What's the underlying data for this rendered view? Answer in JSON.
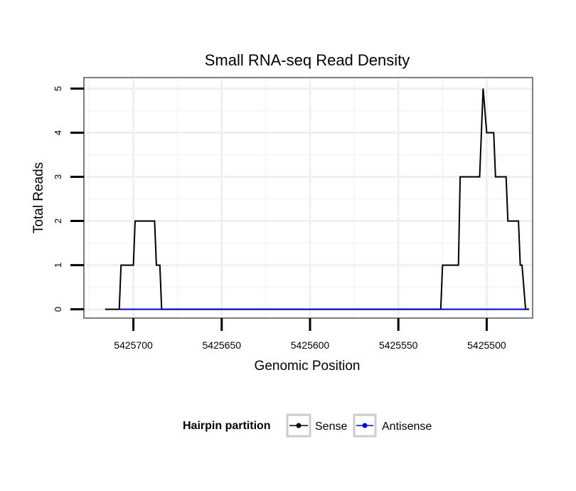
{
  "chart_data": {
    "type": "line",
    "title": "Small RNA-seq Read Density",
    "xlabel": "Genomic Position",
    "ylabel": "Total Reads",
    "x_reversed": true,
    "xlim": [
      5425728,
      5425474
    ],
    "ylim": [
      -0.2,
      5.25
    ],
    "xticks": [
      5425700,
      5425650,
      5425600,
      5425550,
      5425500
    ],
    "xtick_labels": [
      "5425700",
      "5425650",
      "5425600",
      "5425550",
      "5425500"
    ],
    "yticks": [
      0,
      1,
      2,
      3,
      4,
      5
    ],
    "ytick_labels": [
      "0",
      "1",
      "2",
      "3",
      "4",
      "5"
    ],
    "grid": true,
    "legend": {
      "title": "Hairpin partition",
      "position": "bottom",
      "entries": [
        "Sense",
        "Antisense"
      ]
    },
    "series": [
      {
        "name": "Sense",
        "color": "#000000",
        "points": [
          [
            5425716,
            0
          ],
          [
            5425708,
            0
          ],
          [
            5425707,
            1
          ],
          [
            5425700,
            1
          ],
          [
            5425699,
            2
          ],
          [
            5425688,
            2
          ],
          [
            5425687,
            1
          ],
          [
            5425685,
            1
          ],
          [
            5425684,
            0
          ],
          [
            5425526,
            0
          ],
          [
            5425525,
            1
          ],
          [
            5425516,
            1
          ],
          [
            5425515,
            3
          ],
          [
            5425504,
            3
          ],
          [
            5425502,
            5
          ],
          [
            5425500,
            4
          ],
          [
            5425496,
            4
          ],
          [
            5425495,
            3
          ],
          [
            5425489,
            3
          ],
          [
            5425488,
            2
          ],
          [
            5425482,
            2
          ],
          [
            5425481,
            1
          ],
          [
            5425480,
            1
          ],
          [
            5425478,
            0
          ],
          [
            5425476,
            0
          ]
        ]
      },
      {
        "name": "Antisense",
        "color": "#0000ff",
        "points": [
          [
            5425708,
            0
          ],
          [
            5425684,
            0
          ],
          [
            5425526,
            0
          ],
          [
            5425478,
            0
          ]
        ]
      }
    ]
  }
}
